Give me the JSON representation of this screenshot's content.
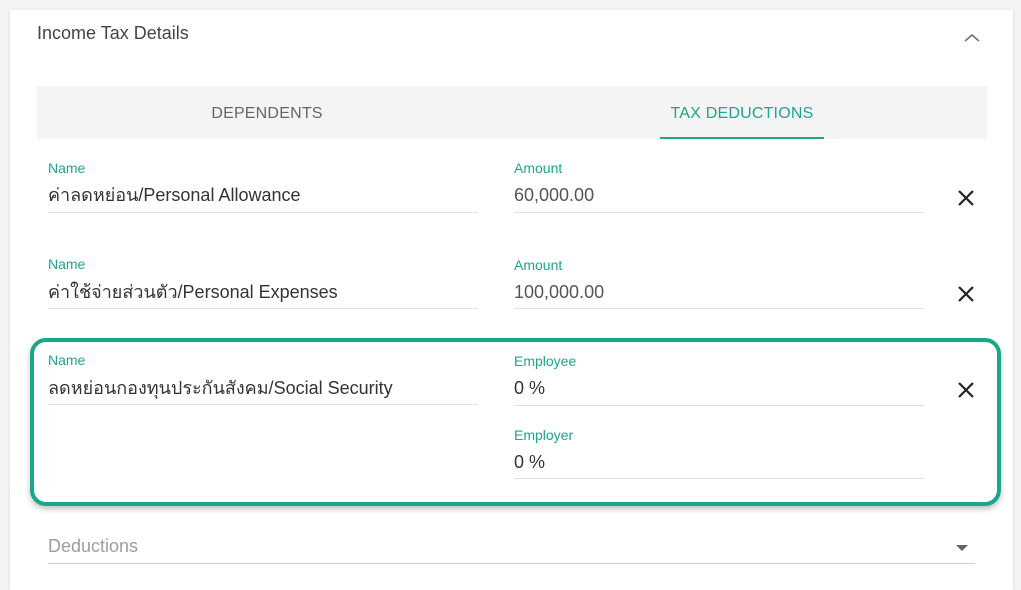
{
  "section": {
    "title": "Income Tax Details"
  },
  "tabs": [
    {
      "label": "DEPENDENTS"
    },
    {
      "label": "TAX DEDUCTIONS"
    }
  ],
  "rows": [
    {
      "name_label": "Name",
      "name": "ค่าลดหย่อน/Personal Allowance",
      "amount_label": "Amount",
      "amount": "60,000.00"
    },
    {
      "name_label": "Name",
      "name": "ค่าใช้จ่ายส่วนตัว/Personal Expenses",
      "amount_label": "Amount",
      "amount": "100,000.00"
    },
    {
      "name_label": "Name",
      "name": "ลดหย่อนกองทุนประกันสังคม/Social Security",
      "employee_label": "Employee",
      "employee": "0 %",
      "employer_label": "Employer",
      "employer": "0 %"
    }
  ],
  "deductions": {
    "placeholder": "Deductions"
  },
  "colors": {
    "accent": "#1fa58a",
    "highlight": "#17a88c"
  },
  "icons": {
    "collapse": "chevron-up-icon",
    "remove": "close-icon",
    "dropdown": "caret-down-icon"
  }
}
